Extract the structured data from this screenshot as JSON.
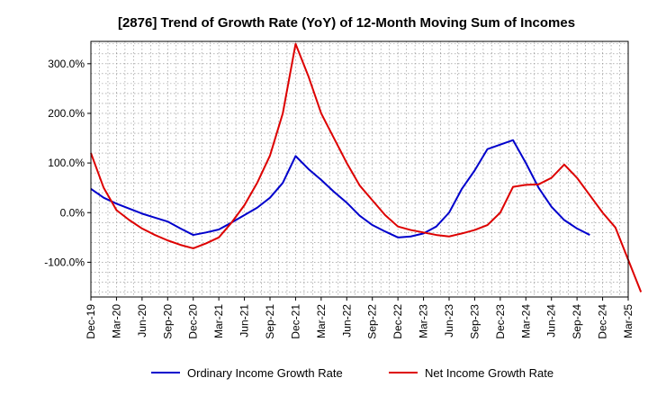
{
  "chart_data": {
    "type": "line",
    "title": "[2876]  Trend of Growth Rate (YoY) of 12-Month Moving Sum of Incomes",
    "xlabel": "",
    "ylabel": "",
    "ylim": [
      -170,
      345
    ],
    "y_ticks": [
      300,
      200,
      100,
      0,
      -100
    ],
    "y_tick_labels": [
      "300.0%",
      "200.0%",
      "100.0%",
      "0.0%",
      "-100.0%"
    ],
    "x_tick_labels": [
      "Dec-19",
      "Mar-20",
      "Jun-20",
      "Sep-20",
      "Dec-20",
      "Mar-21",
      "Jun-21",
      "Sep-21",
      "Dec-21",
      "Mar-22",
      "Jun-22",
      "Sep-22",
      "Dec-22",
      "Mar-23",
      "Jun-23",
      "Sep-23",
      "Dec-23",
      "Mar-24",
      "Jun-24",
      "Sep-24",
      "Dec-24",
      "Mar-25"
    ],
    "grid": true,
    "legend_position": "bottom",
    "series": [
      {
        "name": "Ordinary Income Growth Rate",
        "color": "#0000cc",
        "values": [
          48,
          30,
          18,
          8,
          -2,
          -10,
          -18,
          -32,
          -45,
          -40,
          -34,
          -20,
          -5,
          10,
          30,
          60,
          114,
          88,
          66,
          42,
          20,
          -6,
          -25,
          -38,
          -50,
          -48,
          -42,
          -28,
          0,
          48,
          85,
          128,
          137,
          146,
          100,
          50,
          12,
          -15,
          -32,
          -45
        ]
      },
      {
        "name": "Net Income Growth Rate",
        "color": "#dd0000",
        "values": [
          120,
          50,
          5,
          -15,
          -32,
          -45,
          -56,
          -65,
          -72,
          -62,
          -50,
          -20,
          15,
          60,
          115,
          200,
          340,
          275,
          200,
          150,
          100,
          55,
          25,
          -5,
          -28,
          -35,
          -40,
          -45,
          -48,
          -42,
          -35,
          -25,
          0,
          52,
          56,
          57,
          70,
          97,
          70,
          35,
          0,
          -30,
          -95,
          -160
        ]
      }
    ]
  }
}
